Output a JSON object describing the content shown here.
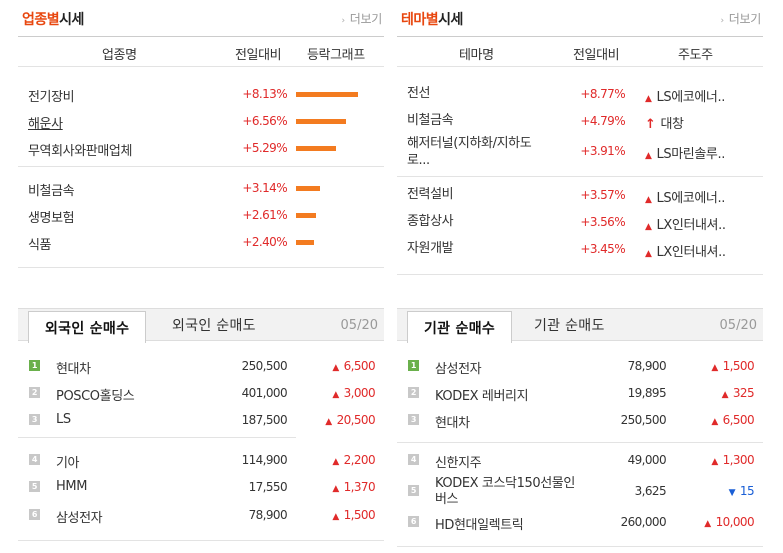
{
  "industry": {
    "title_accent": "업종별",
    "title_rest": "시세",
    "more": "더보기",
    "headers": [
      "업종명",
      "전일대비",
      "등락그래프"
    ],
    "rows": [
      {
        "name": "전기장비",
        "change": "+8.13%",
        "bar": 8.13
      },
      {
        "name": "해운사",
        "change": "+6.56%",
        "bar": 6.56
      },
      {
        "name": "무역회사와판매업체",
        "change": "+5.29%",
        "bar": 5.29
      },
      {
        "name": "비철금속",
        "change": "+3.14%",
        "bar": 3.14
      },
      {
        "name": "생명보험",
        "change": "+2.61%",
        "bar": 2.61
      },
      {
        "name": "식품",
        "change": "+2.40%",
        "bar": 2.4
      }
    ],
    "bar_color": "#f37b20"
  },
  "theme": {
    "title_accent": "테마별",
    "title_rest": "시세",
    "more": "더보기",
    "headers": [
      "테마명",
      "전일대비",
      "주도주"
    ],
    "rows": [
      {
        "name": "전선",
        "change": "+8.77%",
        "leader": "LS에코에너..",
        "icon": "red-triangle-up"
      },
      {
        "name": "비철금속",
        "change": "+4.79%",
        "leader": "대창",
        "icon": "red-arrow-up"
      },
      {
        "name": "해저터널(지하화/지하도로...",
        "name_line1": "해저터널(지하화/지하도",
        "name_line2": "로...",
        "change": "+3.91%",
        "leader": "LS마린솔루..",
        "icon": "red-triangle-up"
      },
      {
        "name": "전력설비",
        "change": "+3.57%",
        "leader": "LS에코에너..",
        "icon": "red-triangle-up"
      },
      {
        "name": "종합상사",
        "change": "+3.56%",
        "leader": "LX인터내셔..",
        "icon": "red-triangle-up"
      },
      {
        "name": "자원개발",
        "change": "+3.45%",
        "leader": "LX인터내셔..",
        "icon": "red-triangle-up"
      }
    ]
  },
  "foreign": {
    "tab_active": "외국인 순매수",
    "tab_other": "외국인 순매도",
    "date": "05/20",
    "rows": [
      {
        "rank": "1",
        "name": "현대차",
        "price": "250,500",
        "change": "6,500",
        "dir": "up"
      },
      {
        "rank": "2",
        "name": "POSCO홀딩스",
        "price": "401,000",
        "change": "3,000",
        "dir": "up"
      },
      {
        "rank": "3",
        "name": "LS",
        "price": "187,500",
        "change": "20,500",
        "dir": "up"
      },
      {
        "rank": "4",
        "name": "기아",
        "price": "114,900",
        "change": "2,200",
        "dir": "up"
      },
      {
        "rank": "5",
        "name": "HMM",
        "price": "17,550",
        "change": "1,370",
        "dir": "up"
      },
      {
        "rank": "6",
        "name": "삼성전자",
        "price": "78,900",
        "change": "1,500",
        "dir": "up"
      }
    ]
  },
  "institution": {
    "tab_active": "기관 순매수",
    "tab_other": "기관 순매도",
    "date": "05/20",
    "rows": [
      {
        "rank": "1",
        "name": "삼성전자",
        "price": "78,900",
        "change": "1,500",
        "dir": "up"
      },
      {
        "rank": "2",
        "name": "KODEX 레버리지",
        "price": "19,895",
        "change": "325",
        "dir": "up"
      },
      {
        "rank": "3",
        "name": "현대차",
        "price": "250,500",
        "change": "6,500",
        "dir": "up"
      },
      {
        "rank": "4",
        "name": "신한지주",
        "price": "49,000",
        "change": "1,300",
        "dir": "up"
      },
      {
        "rank": "5",
        "name": "KODEX 코스닥150선물인버스",
        "name_line1": "KODEX 코스닥150선물인",
        "name_line2": "버스",
        "price": "3,625",
        "change": "15",
        "dir": "down"
      },
      {
        "rank": "6",
        "name": "HD현대일렉트릭",
        "price": "260,000",
        "change": "10,000",
        "dir": "up"
      }
    ]
  },
  "colors": {
    "accent": "#e8470f",
    "up": "#e02a2a",
    "down": "#1a5fd6"
  },
  "icons": {
    "triangle_up": "▲",
    "triangle_down": "▼",
    "arrow_up": "🡅",
    "more_arrow": "›"
  }
}
